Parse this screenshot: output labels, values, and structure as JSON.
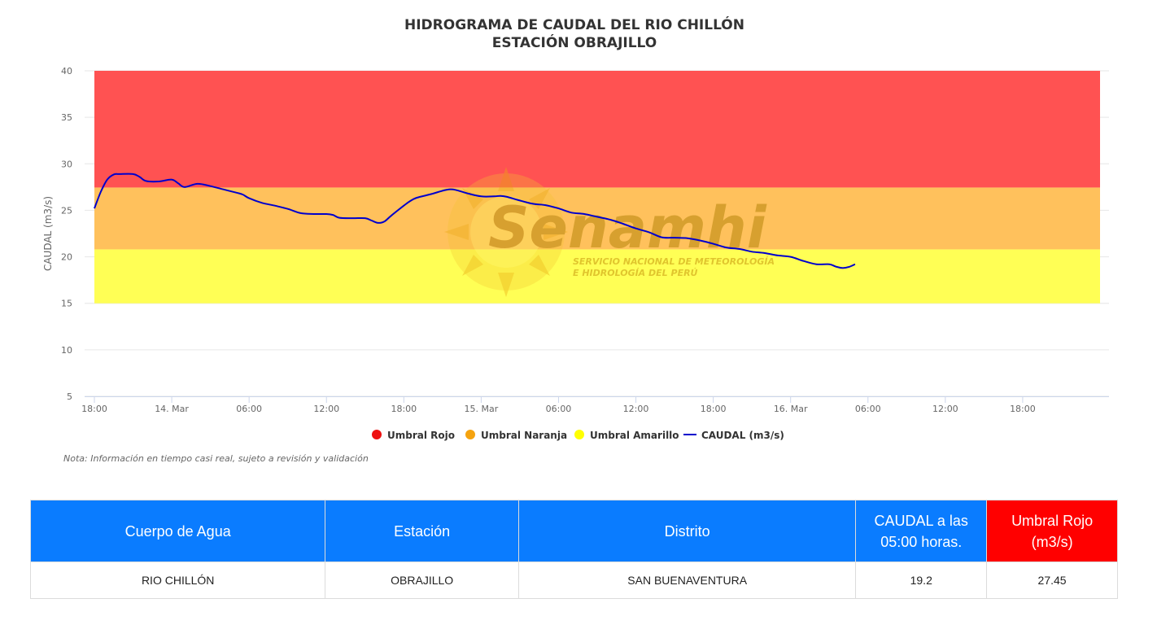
{
  "chart_data": {
    "type": "line",
    "title": "HIDROGRAMA DE CAUDAL DEL RIO CHILLÓN",
    "subtitle": "ESTACIÓN OBRAJILLO",
    "ylabel": "CAUDAL (m3/s)",
    "ylim": [
      5,
      40
    ],
    "yticks": [
      "40",
      "35",
      "30",
      "25",
      "20",
      "15",
      "10",
      "5"
    ],
    "x_axis": "time (hours since 13 Mar 18:00)",
    "xlim_hours": [
      0,
      78
    ],
    "xtick_labels": [
      {
        "h": 0,
        "label": "18:00"
      },
      {
        "h": 6,
        "label": "14. Mar"
      },
      {
        "h": 12,
        "label": "06:00"
      },
      {
        "h": 18,
        "label": "12:00"
      },
      {
        "h": 24,
        "label": "18:00"
      },
      {
        "h": 30,
        "label": "15. Mar"
      },
      {
        "h": 36,
        "label": "06:00"
      },
      {
        "h": 42,
        "label": "12:00"
      },
      {
        "h": 48,
        "label": "18:00"
      },
      {
        "h": 54,
        "label": "16. Mar"
      },
      {
        "h": 60,
        "label": "06:00"
      },
      {
        "h": 66,
        "label": "12:00"
      },
      {
        "h": 72,
        "label": "18:00"
      }
    ],
    "bands": [
      {
        "name": "Umbral Amarillo",
        "from": 15.0,
        "to": 20.8,
        "color": "#ffff55"
      },
      {
        "name": "Umbral Naranja",
        "from": 20.8,
        "to": 27.45,
        "color": "#ffc15c"
      },
      {
        "name": "Umbral Rojo",
        "from": 27.45,
        "to": 40,
        "color": "#ff5252"
      }
    ],
    "series": [
      {
        "name": "CAUDAL (m3/s)",
        "color": "#0000cc",
        "points": [
          [
            0,
            25.2
          ],
          [
            0.5,
            27.0
          ],
          [
            1,
            28.3
          ],
          [
            1.5,
            28.85
          ],
          [
            2,
            28.9
          ],
          [
            3,
            28.9
          ],
          [
            3.5,
            28.6
          ],
          [
            4,
            28.15
          ],
          [
            5,
            28.1
          ],
          [
            6,
            28.3
          ],
          [
            6.5,
            27.9
          ],
          [
            7,
            27.5
          ],
          [
            8,
            27.85
          ],
          [
            9,
            27.6
          ],
          [
            10,
            27.25
          ],
          [
            11,
            26.9
          ],
          [
            11.5,
            26.7
          ],
          [
            12,
            26.3
          ],
          [
            13,
            25.8
          ],
          [
            14,
            25.5
          ],
          [
            15,
            25.15
          ],
          [
            16,
            24.7
          ],
          [
            17,
            24.6
          ],
          [
            18,
            24.6
          ],
          [
            18.5,
            24.5
          ],
          [
            19,
            24.2
          ],
          [
            20,
            24.15
          ],
          [
            21,
            24.15
          ],
          [
            21.5,
            23.9
          ],
          [
            22,
            23.65
          ],
          [
            22.5,
            23.8
          ],
          [
            23,
            24.4
          ],
          [
            24,
            25.5
          ],
          [
            24.5,
            26.0
          ],
          [
            25,
            26.35
          ],
          [
            26,
            26.7
          ],
          [
            27,
            27.1
          ],
          [
            27.5,
            27.25
          ],
          [
            28,
            27.2
          ],
          [
            29,
            26.8
          ],
          [
            30,
            26.5
          ],
          [
            31,
            26.5
          ],
          [
            31.5,
            26.55
          ],
          [
            32,
            26.45
          ],
          [
            33,
            26.05
          ],
          [
            34,
            25.7
          ],
          [
            35,
            25.55
          ],
          [
            36,
            25.2
          ],
          [
            37,
            24.75
          ],
          [
            38,
            24.6
          ],
          [
            39,
            24.3
          ],
          [
            40,
            24.0
          ],
          [
            41,
            23.55
          ],
          [
            42,
            23.05
          ],
          [
            43,
            22.65
          ],
          [
            44,
            22.1
          ],
          [
            45,
            22.05
          ],
          [
            46,
            22.0
          ],
          [
            47,
            21.75
          ],
          [
            48,
            21.4
          ],
          [
            49,
            21.0
          ],
          [
            50,
            20.85
          ],
          [
            51,
            20.55
          ],
          [
            52,
            20.4
          ],
          [
            53,
            20.15
          ],
          [
            54,
            20.0
          ],
          [
            55,
            19.55
          ],
          [
            56,
            19.2
          ],
          [
            57,
            19.2
          ],
          [
            57.5,
            18.95
          ],
          [
            58,
            18.8
          ],
          [
            58.5,
            18.9
          ],
          [
            59,
            19.2
          ]
        ]
      }
    ]
  },
  "watermark": {
    "brand": "Senamhi",
    "line1": "SERVICIO NACIONAL DE METEOROLOGÍA",
    "line2": "E HIDROLOGÍA DEL PERÚ"
  },
  "note": "Nota: Información en tiempo casi real, sujeto a revisión y validación",
  "table": {
    "headers": [
      {
        "label": "Cuerpo de Agua",
        "color": "#0a7cff"
      },
      {
        "label": "Estación",
        "color": "#0a7cff"
      },
      {
        "label": "Distrito",
        "color": "#0a7cff"
      },
      {
        "label": "CAUDAL a las 05:00 horas.",
        "color": "#0a7cff"
      },
      {
        "label": "Umbral Rojo (m3/s)",
        "color": "#ff0000"
      }
    ],
    "row": [
      "RIO CHILLÓN",
      "OBRAJILLO",
      "SAN BUENAVENTURA",
      "19.2",
      "27.45"
    ]
  }
}
